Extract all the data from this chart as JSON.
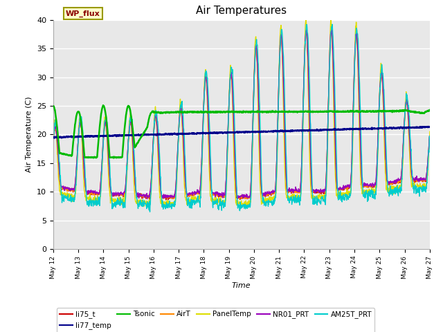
{
  "title": "Air Temperatures",
  "xlabel": "Time",
  "ylabel": "Air Temperature (C)",
  "ylim": [
    0,
    40
  ],
  "background_color": "#e8e8e8",
  "grid_color": "white",
  "wp_flux_label": "WP_flux",
  "legend_entries": [
    "li75_t",
    "li77_temp",
    "Tsonic",
    "AirT",
    "PanelTemp",
    "NR01_PRT",
    "AM25T_PRT"
  ],
  "legend_colors": [
    "#cc0000",
    "#00008b",
    "#00bb00",
    "#ff8800",
    "#dddd00",
    "#9900bb",
    "#00cccc"
  ],
  "num_points": 1500,
  "series": {
    "li75_t": {
      "color": "#cc0000",
      "lw": 1.0
    },
    "li77_temp": {
      "color": "#00008b",
      "lw": 1.8
    },
    "Tsonic": {
      "color": "#00bb00",
      "lw": 1.8
    },
    "AirT": {
      "color": "#ff8800",
      "lw": 1.0
    },
    "PanelTemp": {
      "color": "#dddd00",
      "lw": 1.0
    },
    "NR01_PRT": {
      "color": "#9900bb",
      "lw": 1.0
    },
    "AM25T_PRT": {
      "color": "#00cccc",
      "lw": 1.0
    }
  },
  "xtick_labels": [
    "May 12",
    "May 13",
    "May 14",
    "May 15",
    "May 16",
    "May 17",
    "May 18",
    "May 19",
    "May 20",
    "May 21",
    "May 22",
    "May 23",
    "May 24",
    "May 25",
    "May 26",
    "May 27"
  ],
  "ytick_vals": [
    0,
    5,
    10,
    15,
    20,
    25,
    30,
    35,
    40
  ]
}
